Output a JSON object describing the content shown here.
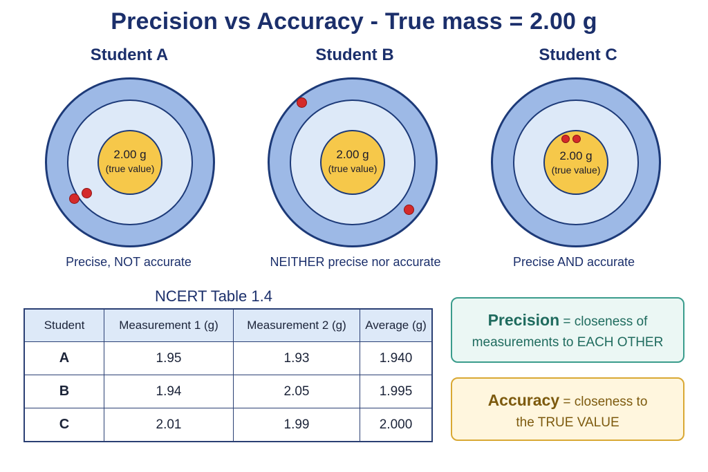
{
  "title": "Precision vs Accuracy - True mass = 2.00 g",
  "targets": [
    {
      "student": "Student A",
      "center_value": "2.00 g",
      "center_note": "(true value)",
      "verdict": "Precise, NOT accurate"
    },
    {
      "student": "Student B",
      "center_value": "2.00 g",
      "center_note": "(true value)",
      "verdict": "NEITHER precise nor accurate"
    },
    {
      "student": "Student C",
      "center_value": "2.00 g",
      "center_note": "(true value)",
      "verdict": "Precise AND accurate"
    }
  ],
  "table": {
    "title": "NCERT Table 1.4",
    "headers": [
      "Student",
      "Measurement 1 (g)",
      "Measurement 2 (g)",
      "Average (g)"
    ],
    "rows": [
      [
        "A",
        "1.95",
        "1.93",
        "1.940"
      ],
      [
        "B",
        "1.94",
        "2.05",
        "1.995"
      ],
      [
        "C",
        "2.01",
        "1.99",
        "2.000"
      ]
    ]
  },
  "definitions": {
    "precision": {
      "term": "Precision",
      "line1_rest": " = closeness of",
      "line2": "measurements to EACH OTHER"
    },
    "accuracy": {
      "term": "Accuracy",
      "line1_rest": " = closeness to",
      "line2": "the TRUE VALUE"
    }
  },
  "colors": {
    "outer_ring": "#9db9e6",
    "middle_ring": "#dde9f8",
    "bullseye": "#f6c84a",
    "hit": "#d42a2a",
    "navy": "#1b2f6b"
  }
}
